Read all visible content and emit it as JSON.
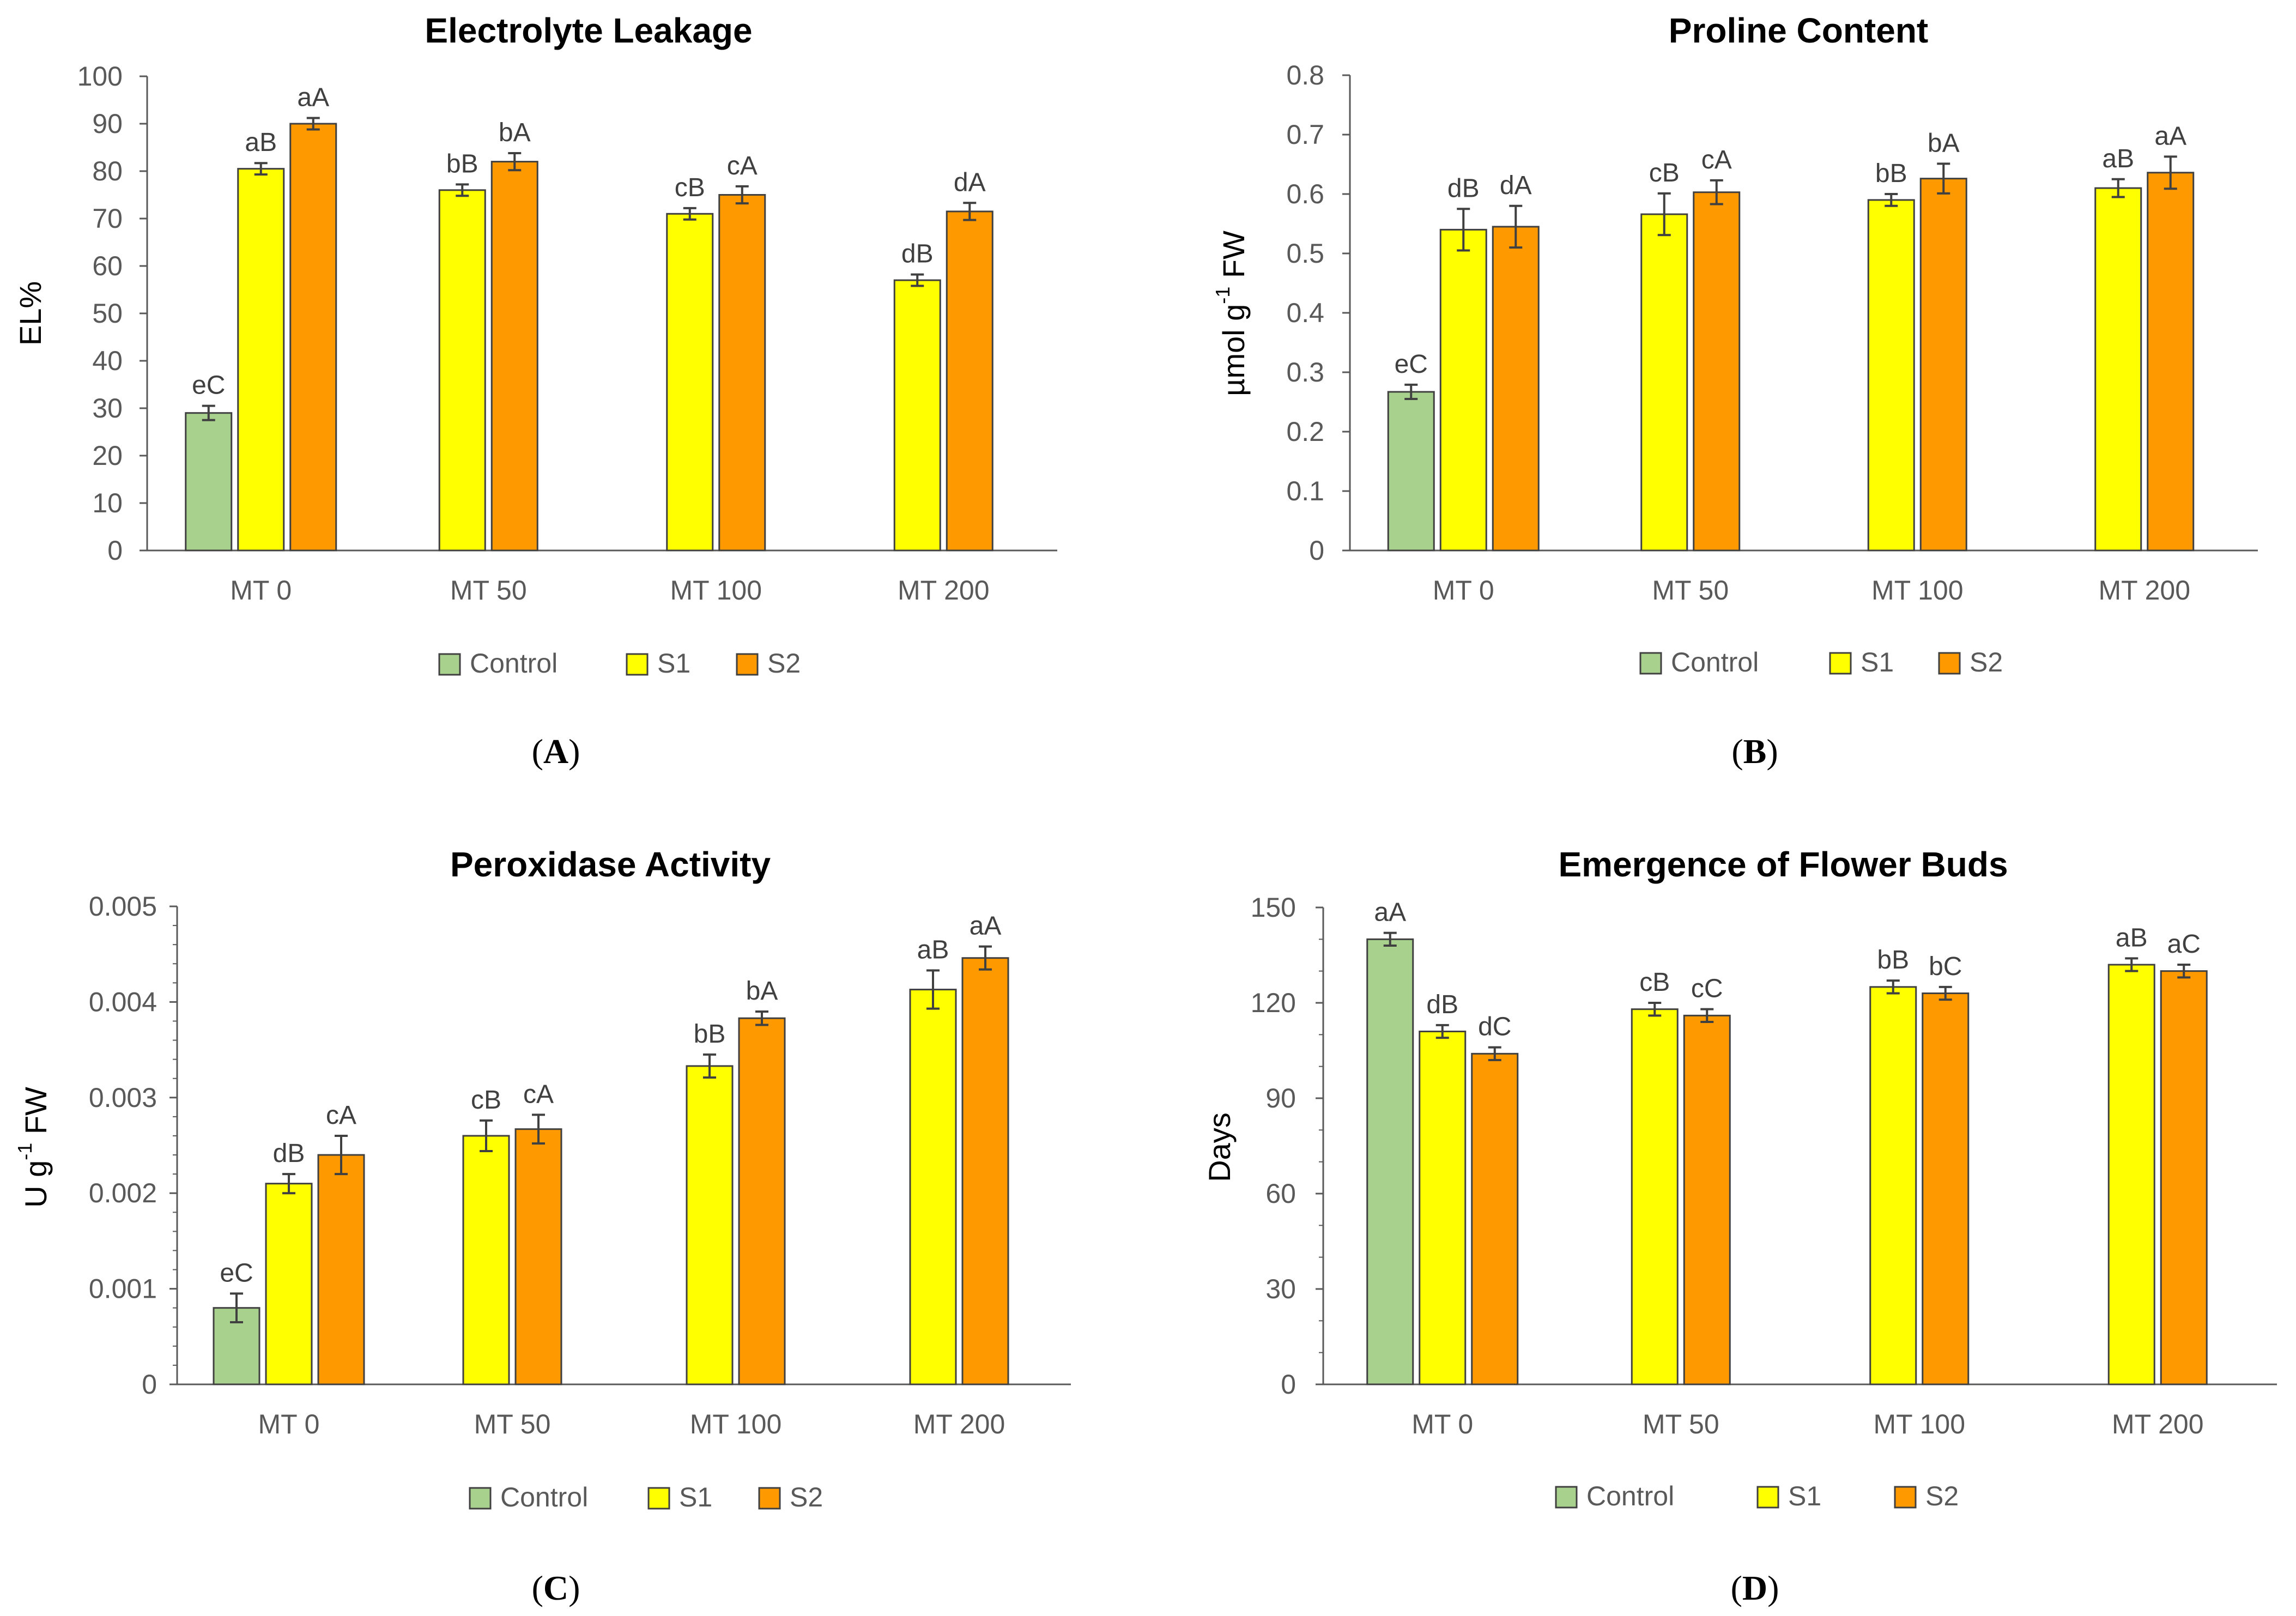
{
  "colors": {
    "control": "#a9d18e",
    "s1": "#ffff00",
    "s2": "#ff9900",
    "axis": "#595959",
    "error": "#404040"
  },
  "chart_data": [
    {
      "panel": "A",
      "type": "bar",
      "title": "Electrolyte Leakage",
      "ylabel": "EL%",
      "ylabel_sup": "",
      "ylabel_tail": "",
      "ylim": [
        0,
        100
      ],
      "ytick_step": 10,
      "yticks": [
        "0",
        "10",
        "20",
        "30",
        "40",
        "50",
        "60",
        "70",
        "80",
        "90",
        "100"
      ],
      "categories": [
        "MT 0",
        "MT 50",
        "MT 100",
        "MT 200"
      ],
      "series": [
        {
          "name": "Control",
          "values": [
            29,
            null,
            null,
            null
          ],
          "errors": [
            1.5,
            null,
            null,
            null
          ],
          "labels": [
            "eC",
            null,
            null,
            null
          ]
        },
        {
          "name": "S1",
          "values": [
            80.5,
            76,
            71,
            57
          ],
          "errors": [
            1.2,
            1.2,
            1.2,
            1.2
          ],
          "labels": [
            "aB",
            "bB",
            "cB",
            "dB"
          ]
        },
        {
          "name": "S2",
          "values": [
            90,
            82,
            75,
            71.5
          ],
          "errors": [
            1.2,
            1.8,
            1.8,
            1.8
          ],
          "labels": [
            "aA",
            "bA",
            "cA",
            "dA"
          ]
        }
      ],
      "legend": [
        "Control",
        "S1",
        "S2"
      ]
    },
    {
      "panel": "B",
      "type": "bar",
      "title": "Proline Content",
      "ylabel": "µmol g",
      "ylabel_sup": "-1",
      "ylabel_tail": " FW",
      "ylim": [
        0,
        0.8
      ],
      "ytick_step": 0.1,
      "yticks": [
        "0",
        "0.1",
        "0.2",
        "0.3",
        "0.4",
        "0.5",
        "0.6",
        "0.7",
        "0.8"
      ],
      "categories": [
        "MT 0",
        "MT 50",
        "MT 100",
        "MT 200"
      ],
      "series": [
        {
          "name": "Control",
          "values": [
            0.267,
            null,
            null,
            null
          ],
          "errors": [
            0.012,
            null,
            null,
            null
          ],
          "labels": [
            "eC",
            null,
            null,
            null
          ]
        },
        {
          "name": "S1",
          "values": [
            0.54,
            0.566,
            0.59,
            0.61
          ],
          "errors": [
            0.035,
            0.035,
            0.01,
            0.015
          ],
          "labels": [
            "dB",
            "cB",
            "bB",
            "aB"
          ]
        },
        {
          "name": "S2",
          "values": [
            0.545,
            0.603,
            0.626,
            0.636
          ],
          "errors": [
            0.035,
            0.02,
            0.025,
            0.027
          ],
          "labels": [
            "dA",
            "cA",
            "bA",
            "aA"
          ]
        }
      ],
      "legend": [
        "Control",
        "S1",
        "S2"
      ]
    },
    {
      "panel": "C",
      "type": "bar",
      "title": "Peroxidase Activity",
      "ylabel": "U g",
      "ylabel_sup": "-1",
      "ylabel_tail": " FW",
      "ylim": [
        0,
        0.005
      ],
      "ytick_step": 0.001,
      "yticks": [
        "0",
        "0.001",
        "0.002",
        "0.003",
        "0.004",
        "0.005"
      ],
      "categories": [
        "MT 0",
        "MT 50",
        "MT 100",
        "MT 200"
      ],
      "series": [
        {
          "name": "Control",
          "values": [
            0.0008,
            null,
            null,
            null
          ],
          "errors": [
            0.00015,
            null,
            null,
            null
          ],
          "labels": [
            "eC",
            null,
            null,
            null
          ]
        },
        {
          "name": "S1",
          "values": [
            0.0021,
            0.0026,
            0.00333,
            0.00413
          ],
          "errors": [
            0.0001,
            0.00016,
            0.00012,
            0.0002
          ],
          "labels": [
            "dB",
            "cB",
            "bB",
            "aB"
          ]
        },
        {
          "name": "S2",
          "values": [
            0.0024,
            0.00267,
            0.00383,
            0.00446
          ],
          "errors": [
            0.0002,
            0.00015,
            7e-05,
            0.00012
          ],
          "labels": [
            "cA",
            "cA",
            "bA",
            "aA"
          ]
        }
      ],
      "legend": [
        "Control",
        "S1",
        "S2"
      ]
    },
    {
      "panel": "D",
      "type": "bar",
      "title": "Emergence of Flower Buds",
      "ylabel": "Days",
      "ylabel_sup": "",
      "ylabel_tail": "",
      "ylim": [
        0,
        150
      ],
      "ytick_step": 30,
      "yticks": [
        "0",
        "30",
        "60",
        "90",
        "120",
        "150"
      ],
      "categories": [
        "MT 0",
        "MT 50",
        "MT 100",
        "MT 200"
      ],
      "series": [
        {
          "name": "Control",
          "values": [
            140,
            null,
            null,
            null
          ],
          "errors": [
            2,
            null,
            null,
            null
          ],
          "labels": [
            "aA",
            null,
            null,
            null
          ]
        },
        {
          "name": "S1",
          "values": [
            111,
            118,
            125,
            132
          ],
          "errors": [
            2,
            2,
            2,
            2
          ],
          "labels": [
            "dB",
            "cB",
            "bB",
            "aB"
          ]
        },
        {
          "name": "S2",
          "values": [
            104,
            116,
            123,
            130
          ],
          "errors": [
            2,
            2,
            2,
            2
          ],
          "labels": [
            "dC",
            "cC",
            "bC",
            "aC"
          ]
        }
      ],
      "legend": [
        "Control",
        "S1",
        "S2"
      ]
    }
  ]
}
